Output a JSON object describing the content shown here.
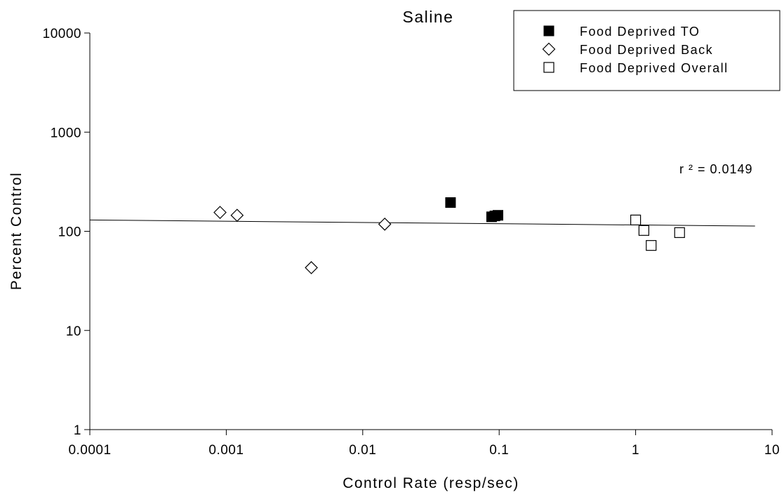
{
  "chart_data": {
    "type": "scatter",
    "title": "Saline",
    "xlabel": "Control Rate (resp/sec)",
    "ylabel": "Percent Control",
    "x_scale": "log",
    "y_scale": "log",
    "xlim": [
      0.0001,
      10
    ],
    "ylim": [
      1,
      10000
    ],
    "x_ticks": [
      "0.0001",
      "0.001",
      "0.01",
      "0.1",
      "1",
      "10"
    ],
    "y_ticks": [
      "1",
      "10",
      "100",
      "1000",
      "10000"
    ],
    "legend_position": "top-right",
    "grid": false,
    "series": [
      {
        "name": "Food Deprived TO",
        "marker": "filled-square",
        "points": [
          {
            "x": 0.044,
            "y": 195
          },
          {
            "x": 0.088,
            "y": 140
          },
          {
            "x": 0.093,
            "y": 143
          },
          {
            "x": 0.098,
            "y": 145
          }
        ]
      },
      {
        "name": "Food Deprived Back",
        "marker": "open-diamond",
        "points": [
          {
            "x": 0.0009,
            "y": 155
          },
          {
            "x": 0.0012,
            "y": 145
          },
          {
            "x": 0.0042,
            "y": 43
          },
          {
            "x": 0.0145,
            "y": 118
          }
        ]
      },
      {
        "name": "Food Deprived Overall",
        "marker": "open-square",
        "points": [
          {
            "x": 1.0,
            "y": 130
          },
          {
            "x": 1.15,
            "y": 102
          },
          {
            "x": 1.3,
            "y": 72
          },
          {
            "x": 2.1,
            "y": 97
          }
        ]
      }
    ],
    "regression_line": {
      "x": [
        0.0001,
        7.5
      ],
      "y": [
        130,
        113
      ]
    },
    "annotation": "r ² = 0.0149"
  }
}
